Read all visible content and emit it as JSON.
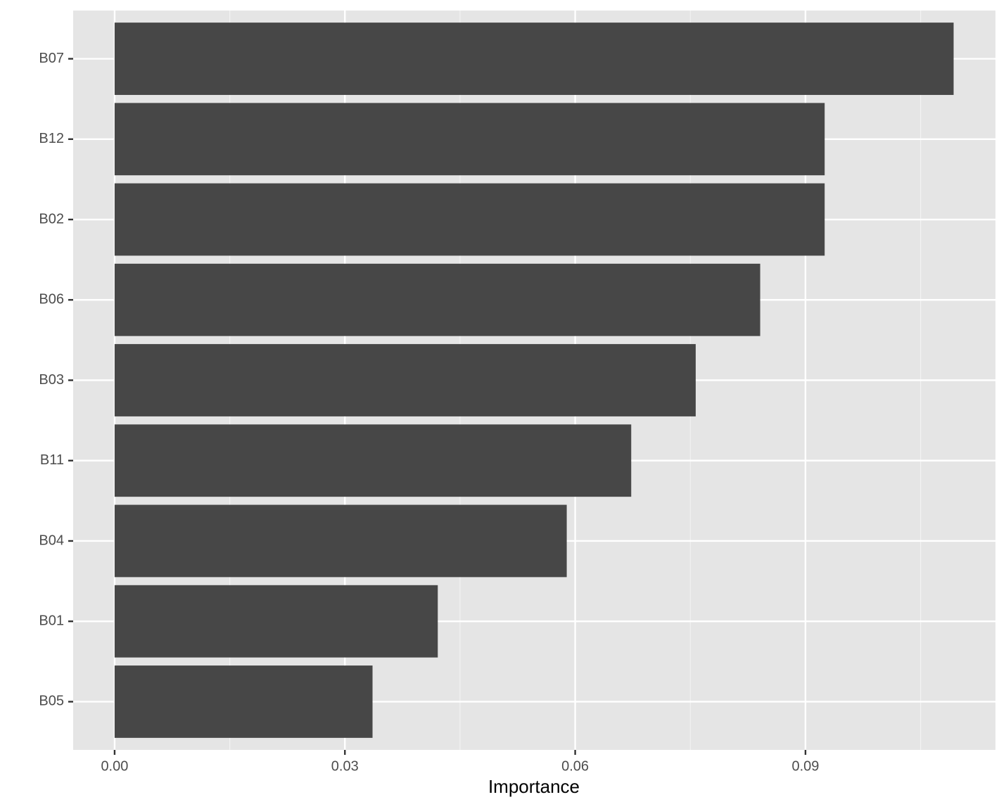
{
  "chart_data": {
    "type": "hbar",
    "xlabel": "Importance",
    "categories": [
      "B07",
      "B12",
      "B02",
      "B06",
      "B03",
      "B11",
      "B04",
      "B01",
      "B05"
    ],
    "values": [
      0.1093,
      0.0925,
      0.0925,
      0.0841,
      0.0757,
      0.0673,
      0.0589,
      0.0421,
      0.0336
    ],
    "color": "#474747",
    "xlim": [
      -0.0054,
      0.11475
    ],
    "xticks": [
      {
        "value": 0,
        "label": "0.00"
      },
      0.03,
      0.06,
      0.09
    ],
    "minor_gridlines": [
      0.015,
      0.045,
      0.075,
      0.105
    ],
    "grid": true
  }
}
